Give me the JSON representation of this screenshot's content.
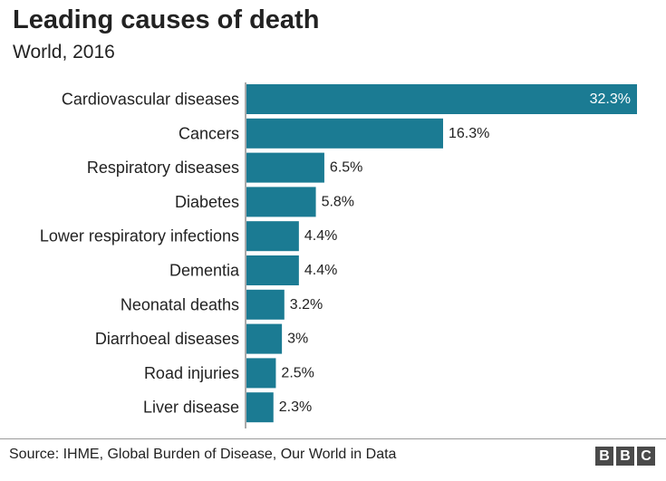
{
  "chart_data": {
    "type": "bar",
    "orientation": "horizontal",
    "title": "Leading causes of death",
    "subtitle": "World, 2016",
    "categories": [
      "Cardiovascular diseases",
      "Cancers",
      "Respiratory diseases",
      "Diabetes",
      "Lower respiratory infections",
      "Dementia",
      "Neonatal deaths",
      "Diarrhoeal diseases",
      "Road injuries",
      "Liver disease"
    ],
    "values": [
      32.3,
      16.3,
      6.5,
      5.8,
      4.4,
      4.4,
      3.2,
      3,
      2.5,
      2.3
    ],
    "value_labels": [
      "32.3%",
      "16.3%",
      "6.5%",
      "5.8%",
      "4.4%",
      "4.4%",
      "3.2%",
      "3%",
      "2.5%",
      "2.3%"
    ],
    "xlim": [
      0,
      32.3
    ],
    "bar_color": "#1b7b93",
    "grid": false,
    "source": "Source: IHME, Global Burden of Disease, Our World in Data"
  },
  "branding": {
    "logo_letters": [
      "B",
      "B",
      "C"
    ]
  }
}
